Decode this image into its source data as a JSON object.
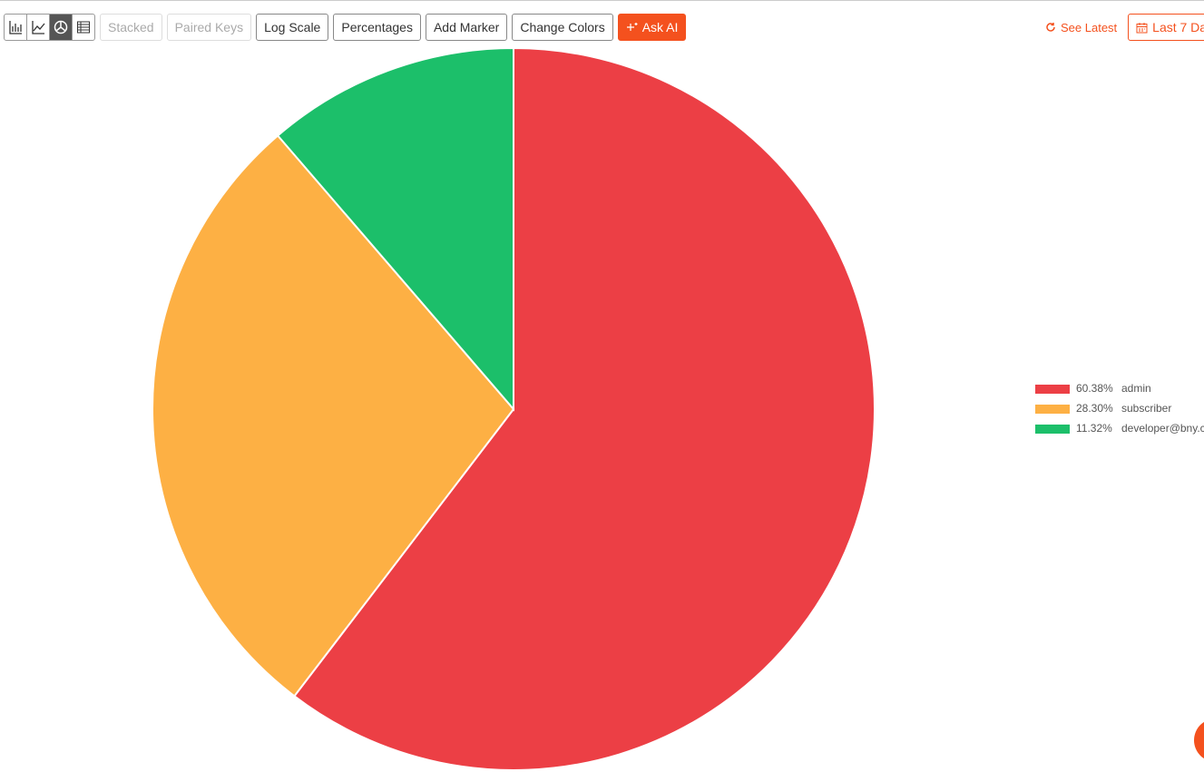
{
  "toolbar": {
    "buttons": [
      "Stacked",
      "Paired Keys",
      "Log Scale",
      "Percentages",
      "Add Marker",
      "Change Colors",
      "Ask AI"
    ],
    "see_latest": "See Latest",
    "range": "Last 7 Da"
  },
  "chart_data": {
    "type": "pie",
    "series": [
      {
        "name": "admin",
        "color": "#ec3f45",
        "values": [
          60.38
        ],
        "value_labels": [
          "60.38%"
        ]
      },
      {
        "name": "subscriber",
        "color": "#fdb044",
        "values": [
          28.3
        ],
        "value_labels": [
          "28.30%"
        ]
      },
      {
        "name": "developer@bny.c",
        "color": "#1cbf6a",
        "values": [
          11.32
        ],
        "value_labels": [
          "11.32%"
        ]
      }
    ]
  }
}
